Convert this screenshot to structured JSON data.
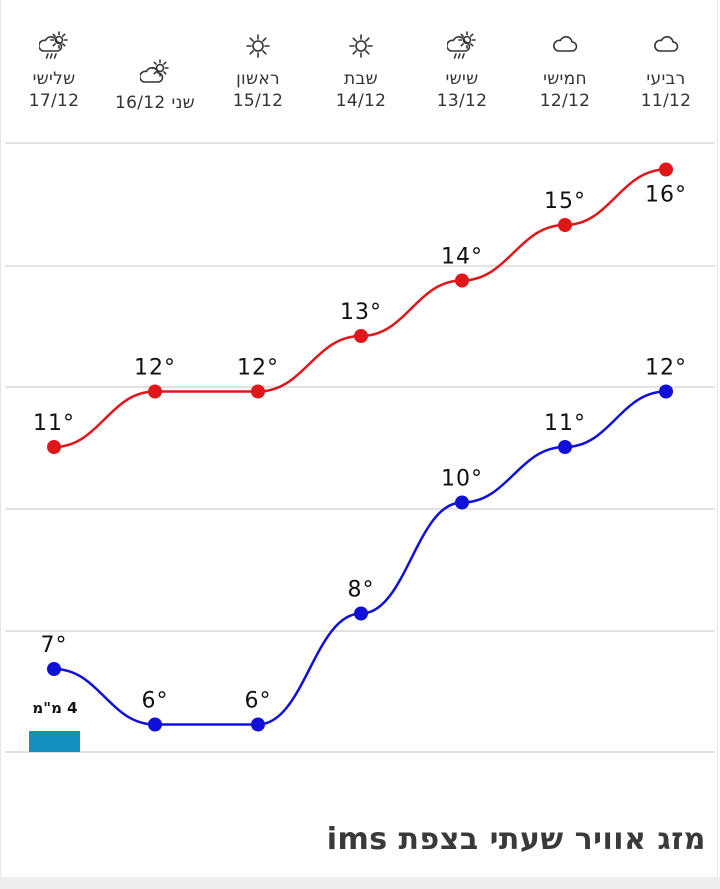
{
  "days": [
    {
      "name": "רביעי",
      "date": "11/12",
      "icon": "cloud-icon",
      "inline": false
    },
    {
      "name": "חמישי",
      "date": "12/12",
      "icon": "cloud-icon",
      "inline": false
    },
    {
      "name": "שישי",
      "date": "13/12",
      "icon": "cloud-sun-rain-icon",
      "inline": false
    },
    {
      "name": "שבת",
      "date": "14/12",
      "icon": "sun-icon",
      "inline": false
    },
    {
      "name": "ראשון",
      "date": "15/12",
      "icon": "sun-icon",
      "inline": false
    },
    {
      "name": "שני",
      "date": "16/12",
      "icon": "cloud-sun-icon",
      "inline": true
    },
    {
      "name": "שלישי",
      "date": "17/12",
      "icon": "cloud-sun-rain-icon",
      "inline": false
    }
  ],
  "chart_data": {
    "type": "line",
    "categories": [
      "11/12",
      "12/12",
      "13/12",
      "14/12",
      "15/12",
      "16/12",
      "17/12"
    ],
    "series": [
      {
        "values": [
          16,
          15,
          14,
          13,
          12,
          12,
          11
        ],
        "color": "#e0161b"
      },
      {
        "values": [
          12,
          11,
          10,
          8,
          6,
          6,
          7
        ],
        "color": "#1010d8"
      }
    ],
    "rain": [
      {
        "category": "17/12",
        "value": 4,
        "label": "4 מ\"מ",
        "color": "#1490c0"
      }
    ],
    "temp_suffix": "°",
    "grid": true
  },
  "footer": {
    "title": "מזג אוויר שעתי בצפת ims"
  }
}
